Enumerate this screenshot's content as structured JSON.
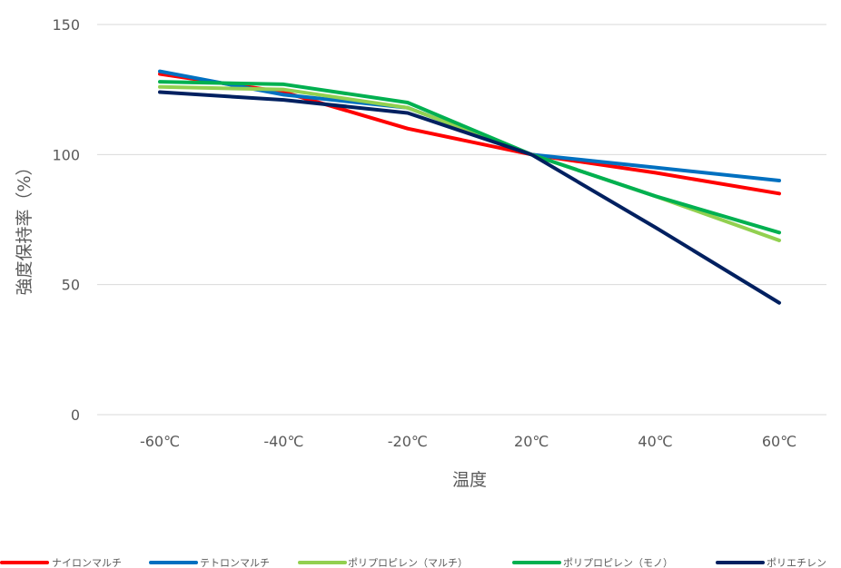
{
  "chart_data": {
    "type": "line",
    "title": "",
    "xlabel": "温度",
    "ylabel": "強度保持率（%）",
    "categories": [
      "-60℃",
      "-40℃",
      "-20℃",
      "20℃",
      "40℃",
      "60℃"
    ],
    "ylim": [
      0,
      150
    ],
    "yticks": [
      "0",
      "50",
      "100",
      "150"
    ],
    "grid": true,
    "legend_position": "bottom",
    "series": [
      {
        "name": "ナイロンマルチ",
        "color": "#FF0000",
        "values": [
          131,
          124,
          110,
          100,
          93,
          85
        ]
      },
      {
        "name": "テトロンマルチ",
        "color": "#0070C0",
        "values": [
          132,
          123,
          118,
          100,
          95,
          90
        ]
      },
      {
        "name": "ポリプロピレン（マルチ）",
        "color": "#92D050",
        "values": [
          126,
          125,
          118,
          100,
          84,
          67
        ]
      },
      {
        "name": "ポリプロピレン（モノ）",
        "color": "#00B050",
        "values": [
          128,
          127,
          120,
          100,
          84,
          70
        ]
      },
      {
        "name": "ポリエチレン",
        "color": "#002060",
        "values": [
          124,
          121,
          116,
          100,
          72,
          43
        ]
      }
    ]
  }
}
